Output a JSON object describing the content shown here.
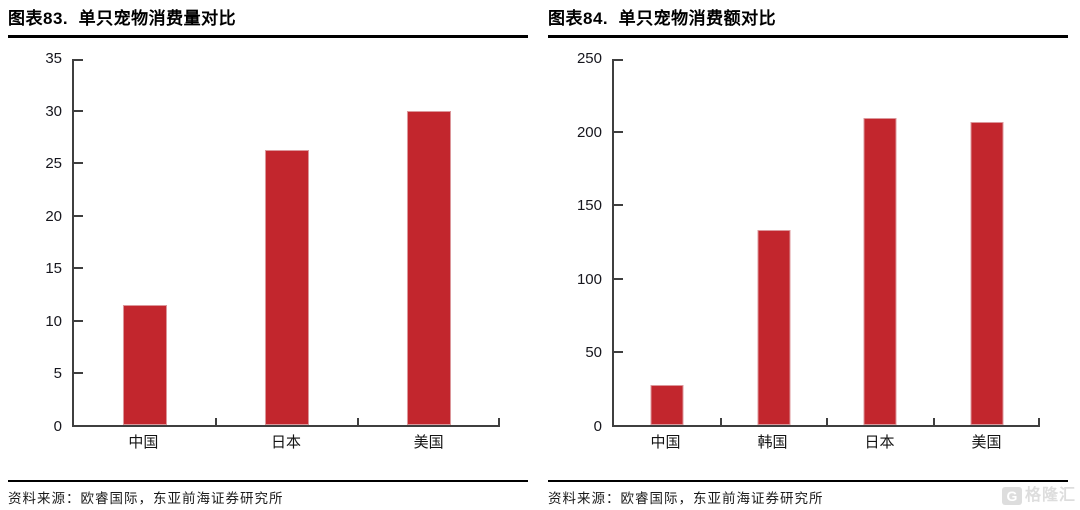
{
  "page": {
    "background": "#ffffff",
    "accent_red": "#c2262d"
  },
  "chart_data": [
    {
      "id": "figure-83",
      "type": "bar",
      "title": "图表83.  单只宠物消费量对比",
      "categories": [
        "中国",
        "日本",
        "美国"
      ],
      "values": [
        11.5,
        26.3,
        30.0
      ],
      "ylim": [
        0,
        35
      ],
      "ytick_step": 5,
      "yticks": [
        0,
        5,
        10,
        15,
        20,
        25,
        30,
        35
      ],
      "xlabel": "",
      "ylabel": "",
      "grid": false,
      "legend_position": "none",
      "bar_color": "#c2262d",
      "source": "资料来源：欧睿国际，东亚前海证券研究所"
    },
    {
      "id": "figure-84",
      "type": "bar",
      "title": "图表84.  单只宠物消费额对比",
      "categories": [
        "中国",
        "韩国",
        "日本",
        "美国"
      ],
      "values": [
        27,
        133,
        210,
        207
      ],
      "ylim": [
        0,
        250
      ],
      "ytick_step": 50,
      "yticks": [
        0,
        50,
        100,
        150,
        200,
        250
      ],
      "xlabel": "",
      "ylabel": "",
      "grid": false,
      "legend_position": "none",
      "bar_color": "#c2262d",
      "source": "资料来源：欧睿国际，东亚前海证券研究所"
    }
  ],
  "watermark": {
    "icon_letter": "G",
    "text": "格隆汇"
  }
}
